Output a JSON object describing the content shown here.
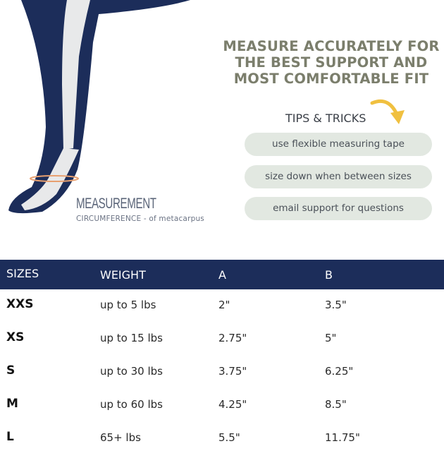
{
  "illustration": {
    "label": "MEASUREMENT",
    "sublabel": "CIRCUMFERENCE - of metacarpus",
    "colors": {
      "leg": "#1c2d5a",
      "bone": "#e8e9ea",
      "measure_ring": "#e8a070"
    }
  },
  "headline": "MEASURE ACCURATELY FOR THE BEST SUPPORT AND MOST COMFORTABLE FIT",
  "tips": {
    "title": "TIPS & TRICKS",
    "arrow_icon": "curved-arrow-icon",
    "items": [
      "use flexible measuring tape",
      "size down when between sizes",
      "email support for questions"
    ]
  },
  "table": {
    "headers": [
      "SIZES",
      "WEIGHT",
      "A",
      "B"
    ],
    "rows": [
      [
        "XXS",
        "up to 5 lbs",
        "2\"",
        "3.5\""
      ],
      [
        "XS",
        "up to 15 lbs",
        "2.75\"",
        "5\""
      ],
      [
        "S",
        "up to 30 lbs",
        "3.75\"",
        "6.25\""
      ],
      [
        "M",
        "up to 60 lbs",
        "4.25\"",
        "8.5\""
      ],
      [
        "L",
        "65+ lbs",
        "5.5\"",
        "11.75\""
      ]
    ]
  },
  "colors": {
    "header_bg": "#1c2d5a",
    "headline": "#7b7e6c",
    "pill_bg": "#e2e8e1",
    "arrow": "#f0c040"
  }
}
